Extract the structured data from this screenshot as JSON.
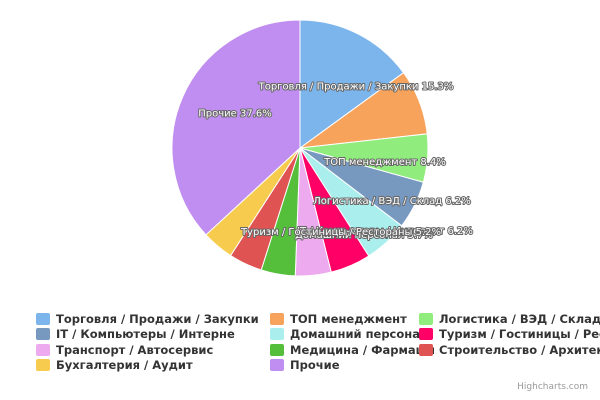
{
  "chart_data": {
    "type": "pie",
    "slices": [
      {
        "name": "Торговля / Продажи / Закупки",
        "value": 15.3,
        "color": "#7cb5ec",
        "label": "Торговля / Продажи / Закупки 15.3%",
        "legend_text": "Торговля / Продажи / Закупки"
      },
      {
        "name": "ТОП менеджмент",
        "value": 8.4,
        "color": "#f7a35c",
        "label": "ТОП менеджмент 8.4%",
        "legend_text": "ТОП менеджмент"
      },
      {
        "name": "Логистика / ВЭД / Склад",
        "value": 6.2,
        "color": "#90ed7d",
        "label": "Логистика / ВЭД / Склад 6.2%",
        "legend_text": "Логистика / ВЭД / Склад"
      },
      {
        "name": "IT / Компьютеры / Интернет",
        "value": 6.2,
        "color": "#7798bf",
        "label": "IT / Компьютеры / Интернет 6.2%",
        "legend_text": "IT / Компьютеры / Интерне"
      },
      {
        "name": "Домашний персонал",
        "value": 5.7,
        "color": "#aaeeee",
        "label": "Домашний персонал 5.7%",
        "legend_text": "Домашний персонал"
      },
      {
        "name": "Туризм / Гостиницы / Рестораны",
        "value": 5.2,
        "color": "#ff0066",
        "label": "Туризм / Гостиницы / Рестораны 5.2%",
        "legend_text": "Туризм / Гостиницы / Ресторан"
      },
      {
        "name": "Транспорт / Автосервис",
        "value": 4.6,
        "color": "#eeaaee",
        "label": "",
        "legend_text": "Транспорт / Автосервис"
      },
      {
        "name": "Медицина / Фармацевтика",
        "value": 4.4,
        "color": "#55bf3b",
        "label": "",
        "legend_text": "Медицина / Фармацевтик"
      },
      {
        "name": "Строительство / Архитектура",
        "value": 4.3,
        "color": "#df5353",
        "label": "",
        "legend_text": "Строительство / Архитектура"
      },
      {
        "name": "Бухгалтерия / Аудит",
        "value": 4.1,
        "color": "#f7cb4d",
        "label": "",
        "legend_text": "Бухгалтерия / Аудит"
      },
      {
        "name": "Прочие",
        "value": 37.6,
        "color": "#c08ef0",
        "label": "Прочие 37.6%",
        "legend_text": "Прочие"
      }
    ]
  },
  "credits": "Highcharts.com"
}
